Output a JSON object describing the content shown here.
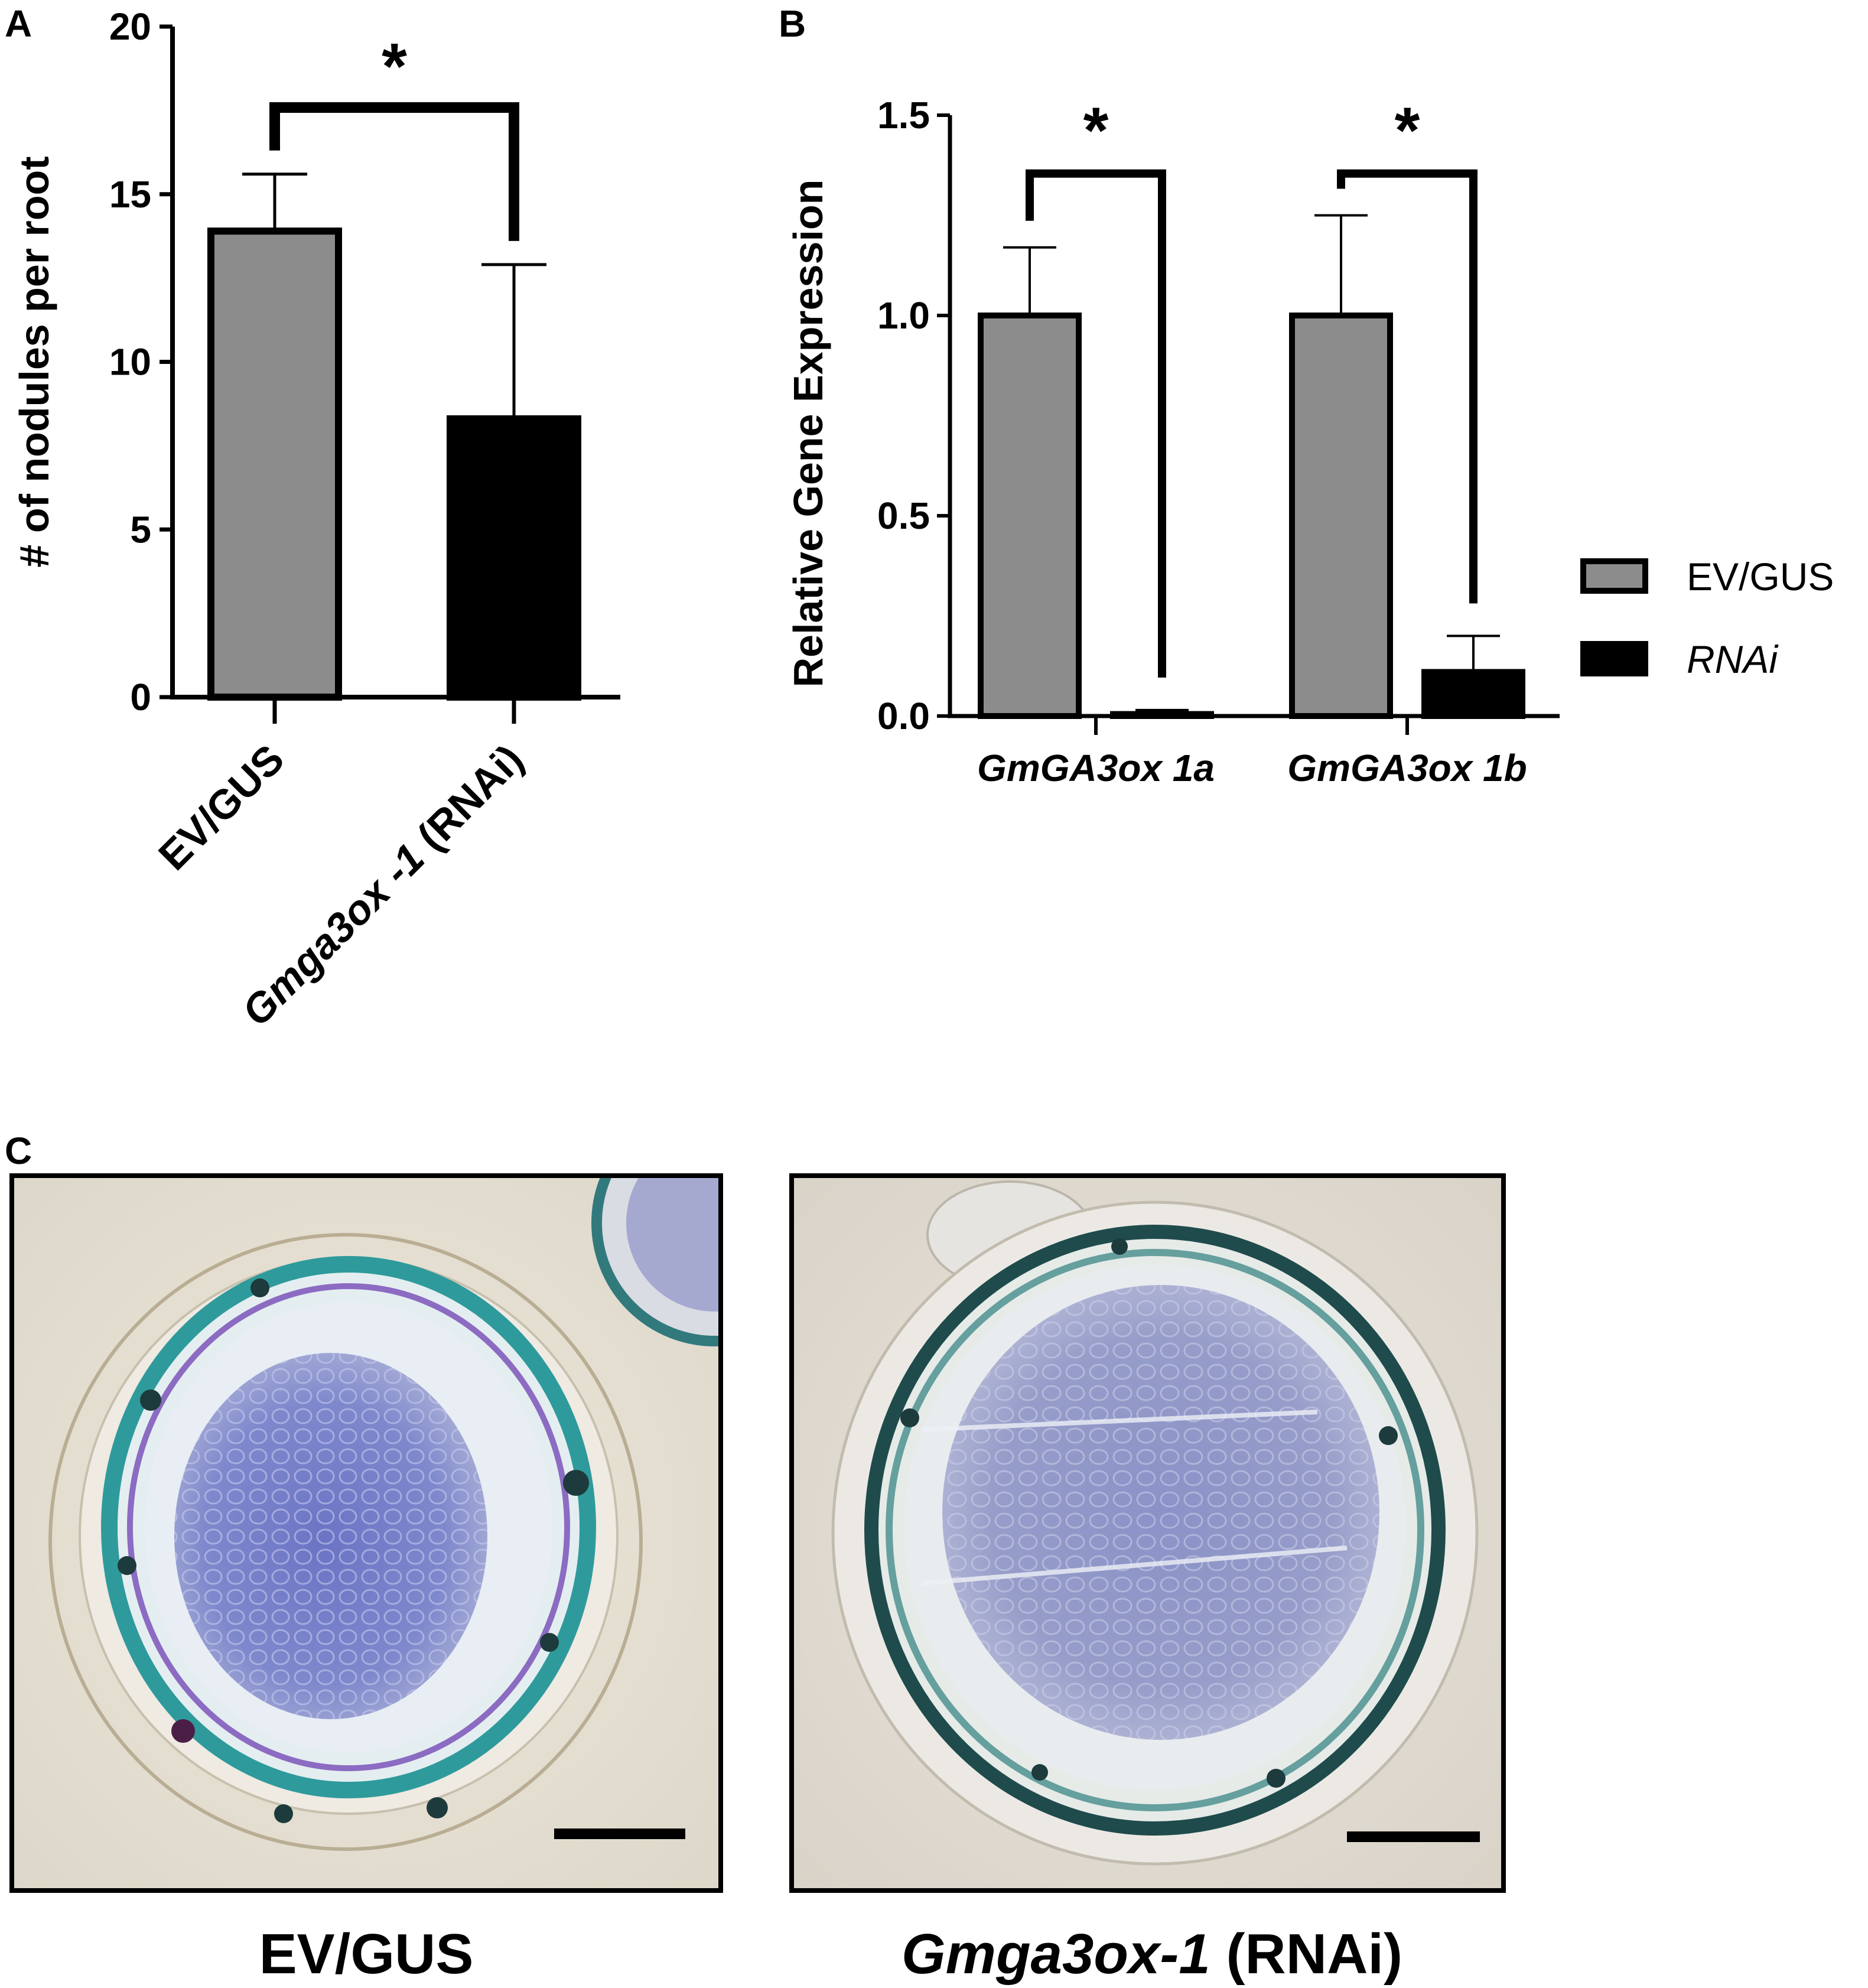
{
  "figure": {
    "panel_labels": [
      "A",
      "B",
      "C"
    ],
    "colors": {
      "ev_gus": "#8c8c8c",
      "rnai": "#000000",
      "axis": "#000000"
    },
    "significance_marker": "*"
  },
  "chart_data": [
    {
      "panel": "A",
      "type": "bar",
      "categories": [
        "EV/GUS",
        "Gmga3ox -1 (RNAi)"
      ],
      "category_parts": [
        {
          "italic": "",
          "plain": "EV/GUS"
        },
        {
          "italic": "Gmga3ox -1",
          "plain": " (RNAi)"
        }
      ],
      "values": [
        13.9,
        8.3
      ],
      "errors": [
        1.7,
        4.6
      ],
      "bar_colors": [
        "#8c8c8c",
        "#000000"
      ],
      "ylabel": "# of nodules per root",
      "xlabel": "",
      "ylim": [
        0,
        20
      ],
      "yticks": [
        "0",
        "5",
        "10",
        "15",
        "20"
      ],
      "ytick_values": [
        0,
        5,
        10,
        15,
        20
      ],
      "significance": [
        "*"
      ],
      "legend": false,
      "grid": false
    },
    {
      "panel": "B",
      "type": "bar",
      "categories": [
        "GmGA3ox 1a",
        "GmGA3ox 1b"
      ],
      "series": [
        {
          "name": "EV/GUS",
          "values": [
            1.0,
            1.0
          ],
          "errors": [
            0.17,
            0.25
          ],
          "color": "#8c8c8c"
        },
        {
          "name": "RNAi",
          "values": [
            0.005,
            0.11
          ],
          "errors": [
            0.01,
            0.09
          ],
          "color": "#000000"
        }
      ],
      "ylabel": "Relative Gene Expression",
      "xlabel": "",
      "ylim": [
        0,
        1.5
      ],
      "yticks": [
        "0.0",
        "0.5",
        "1.0",
        "1.5"
      ],
      "ytick_values": [
        0,
        0.5,
        1.0,
        1.5
      ],
      "significance": [
        "*",
        "*"
      ],
      "legend": "right",
      "grid": false
    }
  ],
  "micrographs": {
    "left_caption": "EV/GUS",
    "right_caption_italic": "Gmga3ox-1",
    "right_caption_plain": " (RNAi)"
  }
}
